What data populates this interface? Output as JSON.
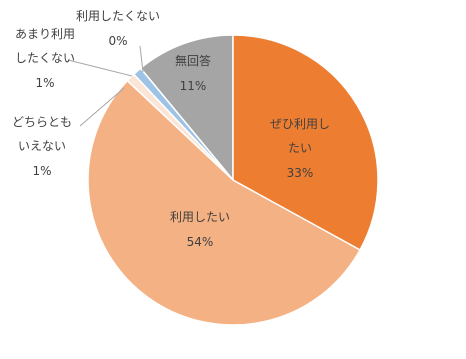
{
  "chart_data": {
    "type": "pie",
    "categories": [
      "ぜひ利用したい",
      "利用したい",
      "どちらともいえない",
      "あまり利用したくない",
      "利用したくない",
      "無回答"
    ],
    "values": [
      33,
      54,
      1,
      1,
      0,
      11
    ],
    "value_labels": [
      "33%",
      "54%",
      "1%",
      "1%",
      "0%",
      "11%"
    ],
    "colors": [
      "#ED7D31",
      "#F4B183",
      "#FBE5D6",
      "#9DC3E6",
      "#5B9BD5",
      "#A5A5A5"
    ]
  }
}
